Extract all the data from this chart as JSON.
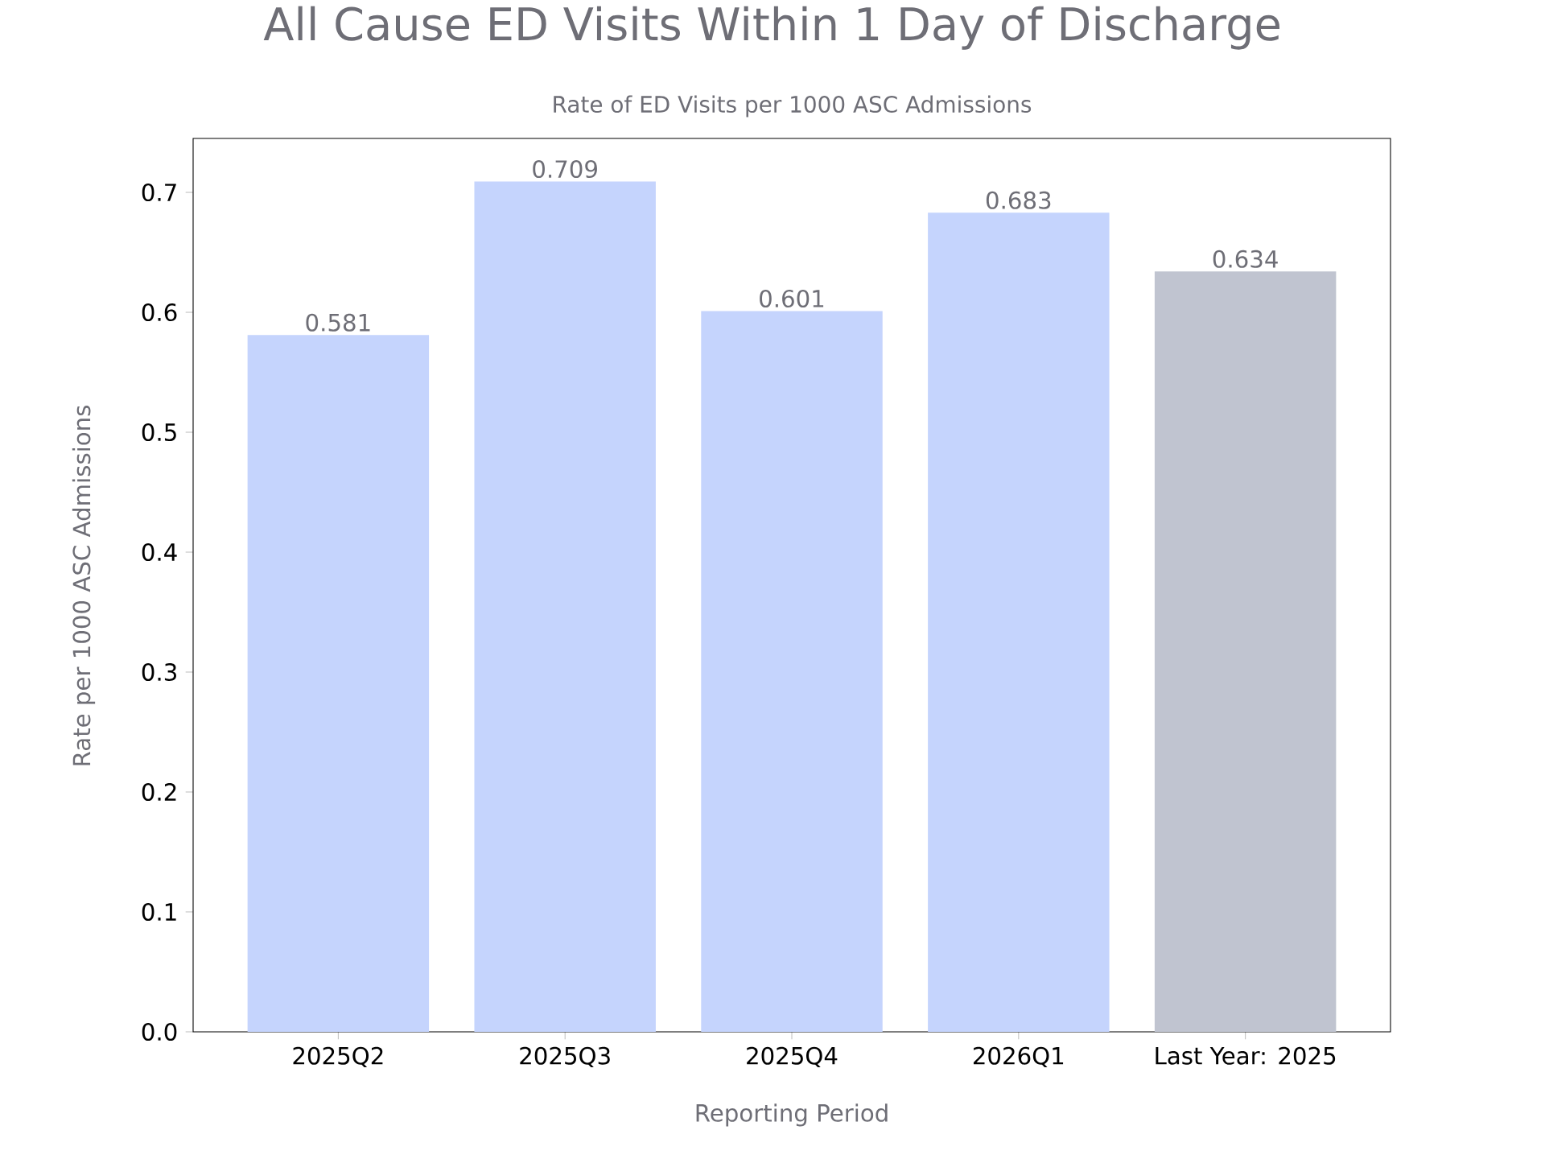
{
  "chart_data": {
    "type": "bar",
    "title": "All Cause ED Visits Within 1 Day of Discharge",
    "subtitle": "Rate of ED Visits per 1000 ASC Admissions",
    "xlabel": "Reporting Period",
    "ylabel": "Rate per 1000 ASC Admissions",
    "categories": [
      "2025Q2",
      "2025Q3",
      "2025Q4",
      "2026Q1",
      "Last Year: 2025"
    ],
    "values": [
      0.581,
      0.709,
      0.601,
      0.683,
      0.634
    ],
    "colors": [
      "#c5d4fd",
      "#c5d4fd",
      "#c5d4fd",
      "#c5d4fd",
      "#c0c4d0"
    ],
    "ylim": [
      0,
      0.745
    ],
    "yticks": [
      {
        "value": 0,
        "label": "0.0"
      },
      0.1,
      0.2,
      0.3,
      0.4,
      0.5,
      0.6,
      0.7
    ],
    "data_labels": true,
    "grid": false
  }
}
